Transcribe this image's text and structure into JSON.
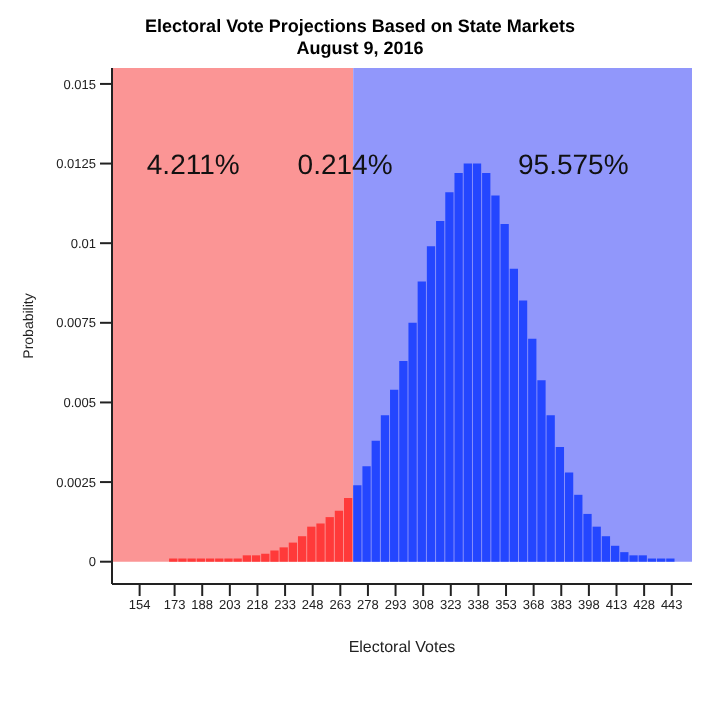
{
  "chart_data": {
    "type": "histogram",
    "title": "Electoral Vote Projections Based on State Markets",
    "subtitle": "August 9, 2016",
    "xlabel": "Electoral Votes",
    "ylabel": "Probability",
    "bins": [
      170,
      175,
      180,
      185,
      190,
      195,
      200,
      205,
      210,
      215,
      220,
      225,
      230,
      235,
      240,
      245,
      250,
      255,
      260,
      265,
      270,
      275,
      280,
      285,
      290,
      295,
      300,
      305,
      310,
      315,
      320,
      325,
      330,
      335,
      340,
      345,
      350,
      355,
      360,
      365,
      370,
      375,
      380,
      385,
      390,
      395,
      400,
      405,
      410,
      415,
      420,
      425,
      430,
      435,
      440,
      445
    ],
    "values": [
      0.0001,
      0.0001,
      0.0001,
      0.0001,
      0.0001,
      0.0001,
      0.0001,
      0.0001,
      0.0002,
      0.0002,
      0.00025,
      0.00035,
      0.00045,
      0.0006,
      0.0008,
      0.0011,
      0.0012,
      0.0014,
      0.0016,
      0.002,
      0.0024,
      0.003,
      0.0038,
      0.0046,
      0.0054,
      0.0063,
      0.0075,
      0.0088,
      0.0099,
      0.0107,
      0.0116,
      0.0122,
      0.0125,
      0.0125,
      0.0122,
      0.0115,
      0.0106,
      0.0092,
      0.0082,
      0.007,
      0.0057,
      0.0046,
      0.0036,
      0.0028,
      0.0021,
      0.0015,
      0.0011,
      0.0008,
      0.0005,
      0.0003,
      0.0002,
      0.0002,
      0.0001,
      0.0001,
      0.0001
    ],
    "colors": [
      "#ff3a3a",
      "#ff3a3a",
      "#ff3a3a",
      "#ff3a3a",
      "#ff3a3a",
      "#ff3a3a",
      "#ff3a3a",
      "#ff3a3a",
      "#ff3a3a",
      "#ff3a3a",
      "#ff3a3a",
      "#ff3a3a",
      "#ff3a3a",
      "#ff3a3a",
      "#ff3a3a",
      "#ff3a3a",
      "#ff3a3a",
      "#ff3a3a",
      "#ff3a3a",
      "#ff3a3a",
      "#2446ff",
      "#2446ff",
      "#2446ff",
      "#2446ff",
      "#2446ff",
      "#2446ff",
      "#2446ff",
      "#2446ff",
      "#2446ff",
      "#2446ff",
      "#2446ff",
      "#2446ff",
      "#2446ff",
      "#2446ff",
      "#2446ff",
      "#2446ff",
      "#2446ff",
      "#2446ff",
      "#2446ff",
      "#2446ff",
      "#2446ff",
      "#2446ff",
      "#2446ff",
      "#2446ff",
      "#2446ff",
      "#2446ff",
      "#2446ff",
      "#2446ff",
      "#2446ff",
      "#2446ff",
      "#2446ff",
      "#2446ff",
      "#2446ff",
      "#2446ff",
      "#2446ff"
    ],
    "xlim": [
      139,
      454
    ],
    "xticks": [
      154,
      173,
      188,
      203,
      218,
      233,
      248,
      263,
      278,
      293,
      308,
      323,
      338,
      353,
      368,
      383,
      398,
      413,
      428,
      443
    ],
    "ylim": [
      -0.0007,
      0.0155
    ],
    "yticks": [
      0,
      0.0025,
      0.005,
      0.0075,
      0.01,
      0.0125,
      0.015
    ],
    "bands": [
      {
        "axis": "x",
        "from": 139,
        "to": 270,
        "color": "#fb9595"
      },
      {
        "axis": "x",
        "from": 270,
        "to": 454,
        "color": "#9197fb"
      }
    ],
    "annotations": [
      "4.211%",
      "0.214%",
      "95.575%"
    ]
  }
}
